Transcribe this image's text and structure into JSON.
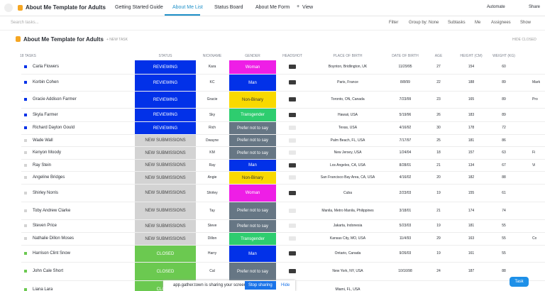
{
  "header": {
    "title": "About Me Template for Adults",
    "tabs": [
      "Getting Started Guide",
      "About Me List",
      "Status Board",
      "About Me Form"
    ],
    "add_view": "View",
    "automate": "Automate",
    "share": "Share"
  },
  "toolbar": {
    "search": "Search tasks...",
    "filter": "Filter",
    "group_by": "Group by: None",
    "subtasks": "Subtasks",
    "me": "Me",
    "assignees": "Assignees",
    "show": "Show"
  },
  "list": {
    "title": "About Me Template for Adults",
    "new_task": "+ NEW TASK",
    "hide_closed": "HIDE CLOSED"
  },
  "columns": {
    "tasks": "18 TASKS",
    "status": "STATUS",
    "nickname": "NICKNAME",
    "gender": "GENDER",
    "headshot": "HEADSHOT",
    "place": "PLACE OF BIRTH",
    "dob": "DATE OF BIRTH",
    "age": "AGE",
    "height": "HEIGHT (CM)",
    "weight": "WEIGHT (KG)"
  },
  "rows": [
    {
      "name": "Carla Flowers",
      "status": "REVIEWING",
      "status_color": "#0231e8",
      "nickname": "Kara",
      "gender": "Woman",
      "gender_color": "#ee1ee6",
      "headshot": true,
      "place": "Boynton, Bridlington, UK",
      "dob": "11/29/95",
      "age": 27,
      "height": 154,
      "weight": 60
    },
    {
      "name": "Korbin Cohen",
      "status": "REVIEWING",
      "status_color": "#0231e8",
      "nickname": "KC",
      "gender": "Man",
      "gender_color": "#0231e8",
      "headshot": true,
      "place": "Paris, France",
      "dob": "8/8/99",
      "age": 22,
      "height": 188,
      "weight": 89,
      "extra": "Mark"
    },
    {
      "name": "Gracie Addison Farmer",
      "status": "REVIEWING",
      "status_color": "#0231e8",
      "nickname": "Gracie",
      "gender": "Non-Binary",
      "gender_color": "#f9d900",
      "headshot": true,
      "place": "Toronto, ON, Canada",
      "dob": "7/23/99",
      "age": 23,
      "height": 165,
      "weight": 89,
      "extra": "Pro"
    },
    {
      "name": "Skyla Farmer",
      "status": "REVIEWING",
      "status_color": "#0231e8",
      "nickname": "Sky",
      "gender": "Transgender",
      "gender_color": "#2ecd6f",
      "headshot": true,
      "place": "Hawaii, USA",
      "dob": "5/19/96",
      "age": 26,
      "height": 183,
      "weight": 89
    },
    {
      "name": "Richard Dayton Gould",
      "status": "REVIEWING",
      "status_color": "#0231e8",
      "nickname": "Rich",
      "gender": "Prefer not to say",
      "gender_color": "#667684",
      "headshot": false,
      "place": "Texas, USA",
      "dob": "4/16/92",
      "age": 30,
      "height": 178,
      "weight": 72
    },
    {
      "name": "Wade Wall",
      "status": "NEW SUBMISSIONS",
      "status_color": "#d3d3d3",
      "nickname": "Dwayne",
      "gender": "Prefer not to say",
      "gender_color": "#667684",
      "headshot": false,
      "place": "Palm Beach, FL, USA",
      "dob": "7/17/97",
      "age": 25,
      "height": 181,
      "weight": 86
    },
    {
      "name": "Kenyon Moody",
      "status": "NEW SUBMISSIONS",
      "status_color": "#d3d3d3",
      "nickname": "KM",
      "gender": "Prefer not to say",
      "gender_color": "#667684",
      "headshot": false,
      "place": "New Jersey, USA",
      "dob": "1/24/04",
      "age": 18,
      "height": 157,
      "weight": 63,
      "extra": "Fi"
    },
    {
      "name": "Ray Stein",
      "status": "NEW SUBMISSIONS",
      "status_color": "#d3d3d3",
      "nickname": "Ray",
      "gender": "Man",
      "gender_color": "#0231e8",
      "headshot": true,
      "place": "Los Angeles, CA, USA",
      "dob": "8/28/01",
      "age": 21,
      "height": 134,
      "weight": 67,
      "extra": "Vi"
    },
    {
      "name": "Angeline Bridges",
      "status": "NEW SUBMISSIONS",
      "status_color": "#d3d3d3",
      "nickname": "Angie",
      "gender": "Non-Binary",
      "gender_color": "#f9d900",
      "headshot": false,
      "place": "San Francisco Bay Area, CA, USA",
      "dob": "4/16/02",
      "age": 20,
      "height": 182,
      "weight": 88
    },
    {
      "name": "Shirley Norris",
      "status": "NEW SUBMISSIONS",
      "status_color": "#d3d3d3",
      "nickname": "Shirley",
      "gender": "Woman",
      "gender_color": "#ee1ee6",
      "headshot": true,
      "place": "Cuba",
      "dob": "2/23/03",
      "age": 19,
      "height": 155,
      "weight": 61
    },
    {
      "name": "Toby Andrew Clarke",
      "status": "NEW SUBMISSIONS",
      "status_color": "#d3d3d3",
      "nickname": "Tay",
      "gender": "Prefer not to say",
      "gender_color": "#667684",
      "headshot": false,
      "place": "Manila, Metro Manila, Philippines",
      "dob": "3/18/01",
      "age": 21,
      "height": 174,
      "weight": 74
    },
    {
      "name": "Steven Price",
      "status": "NEW SUBMISSIONS",
      "status_color": "#d3d3d3",
      "nickname": "Steve",
      "gender": "Prefer not to say",
      "gender_color": "#667684",
      "headshot": false,
      "place": "Jakarta, Indonesia",
      "dob": "5/23/03",
      "age": 19,
      "height": 181,
      "weight": 55
    },
    {
      "name": "Nathalie Dillon Moses",
      "status": "NEW SUBMISSIONS",
      "status_color": "#d3d3d3",
      "nickname": "Dillon",
      "gender": "Transgender",
      "gender_color": "#2ecd6f",
      "headshot": false,
      "place": "Kansas City, MO, USA",
      "dob": "11/4/93",
      "age": 29,
      "height": 163,
      "weight": 55,
      "extra": "Co"
    },
    {
      "name": "Harrison Clint Snow",
      "status": "CLOSED",
      "status_color": "#6bc950",
      "nickname": "Harry",
      "gender": "Man",
      "gender_color": "#0231e8",
      "headshot": true,
      "place": "Ontario, Canada",
      "dob": "9/26/03",
      "age": 19,
      "height": 161,
      "weight": 55
    },
    {
      "name": "John Cale Short",
      "status": "CLOSED",
      "status_color": "#6bc950",
      "nickname": "Cal",
      "gender": "Prefer not to say",
      "gender_color": "#667684",
      "headshot": true,
      "place": "New York, NY, USA",
      "dob": "10/16/98",
      "age": 24,
      "height": 187,
      "weight": 88
    },
    {
      "name": "Liana Lara",
      "status": "CLOSED",
      "status_color": "#6bc950",
      "place": "Miami, FL, USA"
    }
  ],
  "banner": {
    "text": "app.gather.town is sharing your screen.",
    "stop": "Stop sharing",
    "hide": "Hide"
  },
  "fab": "Task"
}
